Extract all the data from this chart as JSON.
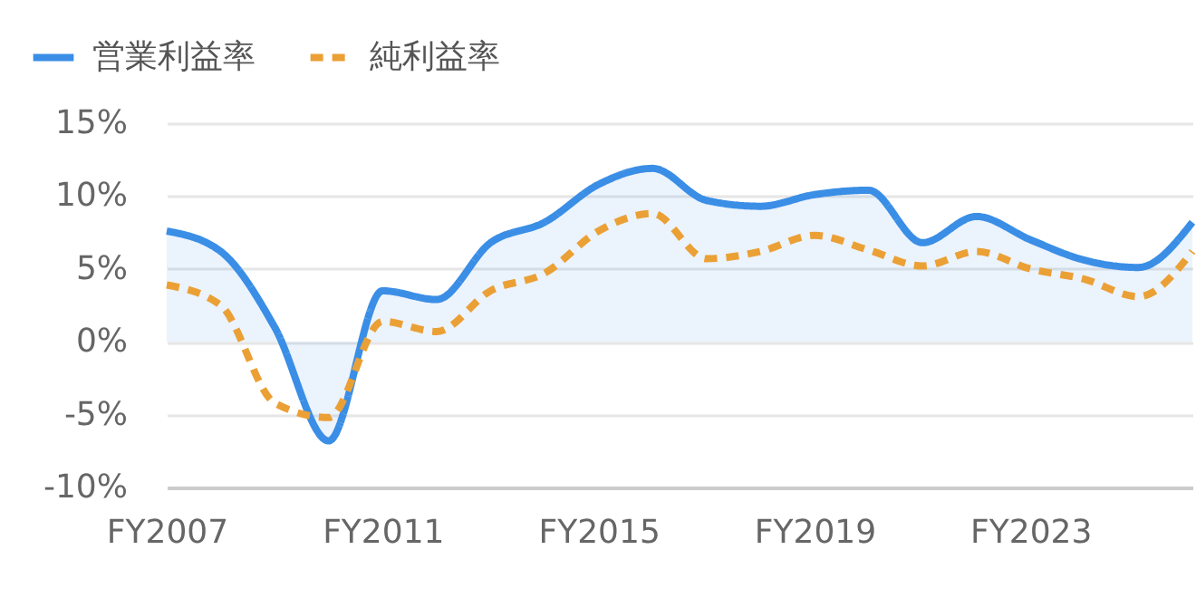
{
  "chart_data": {
    "type": "line",
    "categories": [
      "FY2007",
      null,
      null,
      null,
      "FY2011",
      null,
      null,
      null,
      "FY2015",
      null,
      null,
      null,
      "FY2019",
      null,
      null,
      null,
      "FY2023",
      null,
      null,
      null
    ],
    "series": [
      {
        "name": "営業利益率",
        "type": "area",
        "color": "#3a8ee6",
        "line_style": "solid",
        "values": [
          7.6,
          6.2,
          1.0,
          -6.8,
          3.5,
          2.9,
          6.8,
          8.2,
          10.8,
          11.9,
          9.7,
          9.3,
          10.1,
          10.4,
          6.8,
          8.6,
          7.0,
          5.6,
          5.1,
          8.2
        ]
      },
      {
        "name": "純利益率",
        "type": "line",
        "color": "#eba035",
        "line_style": "dashed",
        "values": [
          3.9,
          2.5,
          -4.2,
          -5.2,
          1.4,
          0.7,
          3.5,
          4.7,
          7.6,
          8.8,
          5.7,
          6.2,
          7.3,
          6.3,
          5.2,
          6.2,
          5.0,
          4.3,
          3.1,
          6.2
        ]
      }
    ],
    "ylim": [
      -10,
      15
    ],
    "yticks": [
      {
        "value": -10,
        "label": "-10%"
      },
      {
        "value": -5,
        "label": "-5%"
      },
      {
        "value": 0,
        "label": "0%"
      },
      {
        "value": 5,
        "label": "5%"
      },
      {
        "value": 10,
        "label": "10%"
      },
      {
        "value": 15,
        "label": "15%"
      }
    ],
    "grid": "y",
    "legend": "top left",
    "marker": "none"
  }
}
